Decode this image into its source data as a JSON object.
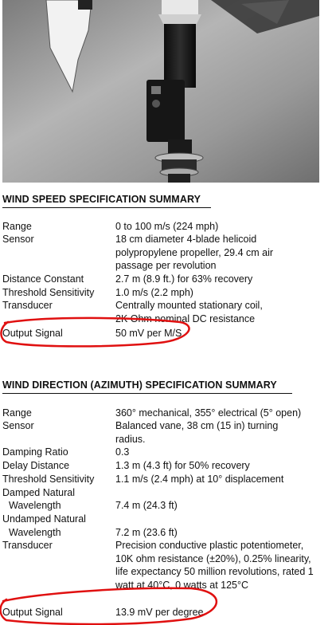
{
  "speed": {
    "title": "WIND SPEED SPECIFICATION SUMMARY",
    "rows": [
      {
        "label": "Range",
        "value": "0 to 100 m/s (224 mph)"
      },
      {
        "label": "Sensor",
        "value": "18 cm diameter 4-blade helicoid polypropylene propeller, 29.4 cm air passage per revolution"
      },
      {
        "label": "Distance Constant",
        "value": "2.7 m (8.9 ft.) for 63% recovery"
      },
      {
        "label": "Threshold Sensitivity",
        "value": "1.0 m/s (2.2 mph)"
      },
      {
        "label": "Transducer",
        "value": "Centrally mounted stationary coil, 2K Ohm nominal DC resistance"
      },
      {
        "label": "Output Signal",
        "value": "50 mV per M/S"
      }
    ]
  },
  "direction": {
    "title": "WIND DIRECTION (AZIMUTH) SPECIFICATION SUMMARY",
    "rows": [
      {
        "label": "Range",
        "value": "360° mechanical, 355° electrical (5° open)"
      },
      {
        "label": "Sensor",
        "value": "Balanced vane, 38 cm (15 in) turning radius."
      },
      {
        "label": "Damping Ratio",
        "value": "0.3"
      },
      {
        "label": "Delay Distance",
        "value": "1.3 m (4.3 ft) for 50% recovery"
      },
      {
        "label": "Threshold Sensitivity",
        "value": "1.1 m/s (2.4 mph) at 10° displacement"
      },
      {
        "label": "Damped Natural",
        "value": ""
      },
      {
        "label": "Wavelength",
        "value": "7.4 m (24.3 ft)"
      },
      {
        "label": "Undamped Natural",
        "value": ""
      },
      {
        "label": "Wavelength",
        "value": "7.2 m (23.6 ft)"
      },
      {
        "label": "Transducer",
        "value": "Precision conductive plastic potentiometer, 10K ohm resistance (±20%), 0.25% linearity, life expectancy 50 million revolutions, rated 1 watt at 40°C, 0 watts at 125°C"
      },
      {
        "label": "Output Signal",
        "value": "13.9 mV per degree"
      }
    ]
  },
  "colors": {
    "annotation": "#e01010"
  }
}
